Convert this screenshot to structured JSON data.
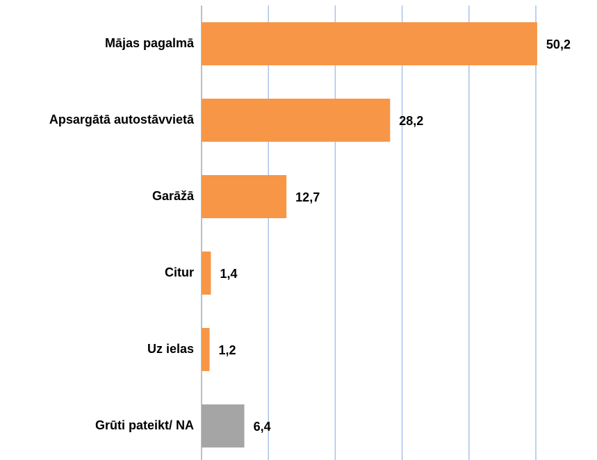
{
  "chart_data": {
    "type": "bar",
    "orientation": "horizontal",
    "categories": [
      "Mājas pagalmā",
      "Apsargātā autostāvvietā",
      "Garāžā",
      "Citur",
      "Uz ielas",
      "Grūti pateikt/ NA"
    ],
    "values": [
      50.2,
      28.2,
      12.7,
      1.4,
      1.2,
      6.4
    ],
    "value_labels": [
      "50,2",
      "28,2",
      "12,7",
      "1,4",
      "1,2",
      "6,4"
    ],
    "colors": [
      "#f79646",
      "#f79646",
      "#f79646",
      "#f79646",
      "#f79646",
      "#a5a5a5"
    ],
    "xlim": [
      0,
      50
    ],
    "xticks": [
      0,
      10,
      20,
      30,
      40,
      50
    ],
    "grid": true
  }
}
